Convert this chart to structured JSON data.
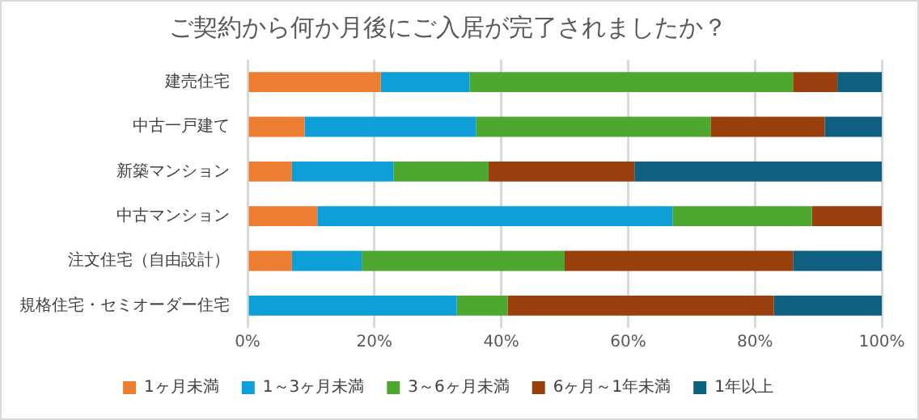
{
  "chart_data": {
    "type": "bar",
    "orientation": "horizontal",
    "stacked": true,
    "title": "ご契約から何か月後にご入居が完了されましたか？",
    "categories": [
      "建売住宅",
      "中古一戸建て",
      "新築マンション",
      "中古マンション",
      "注文住宅（自由設計）",
      "規格住宅・セミオーダー住宅"
    ],
    "series": [
      {
        "name": "1ヶ月未満",
        "color": "#ed7d31",
        "values": [
          21,
          9,
          7,
          11,
          7,
          0
        ]
      },
      {
        "name": "1～3ヶ月未満",
        "color": "#0e9fd8",
        "values": [
          14,
          27,
          16,
          56,
          11,
          33
        ]
      },
      {
        "name": "3～6ヶ月未満",
        "color": "#4ea72e",
        "values": [
          51,
          37,
          15,
          22,
          32,
          8
        ]
      },
      {
        "name": "6ヶ月～1年未満",
        "color": "#9a3f0e",
        "values": [
          7,
          18,
          23,
          11,
          36,
          42
        ]
      },
      {
        "name": "1年以上",
        "color": "#0f6080",
        "values": [
          7,
          9,
          39,
          0,
          14,
          17
        ]
      }
    ],
    "xlim": [
      0,
      100
    ],
    "xticks": [
      {
        "value": 0,
        "label": "0%"
      },
      {
        "value": 20,
        "label": "20%"
      },
      {
        "value": 40,
        "label": "40%"
      },
      {
        "value": 60,
        "label": "60%"
      },
      {
        "value": 80,
        "label": "80%"
      },
      {
        "value": 100,
        "label": "100%"
      }
    ],
    "grid": "x",
    "legend": "bottom"
  }
}
